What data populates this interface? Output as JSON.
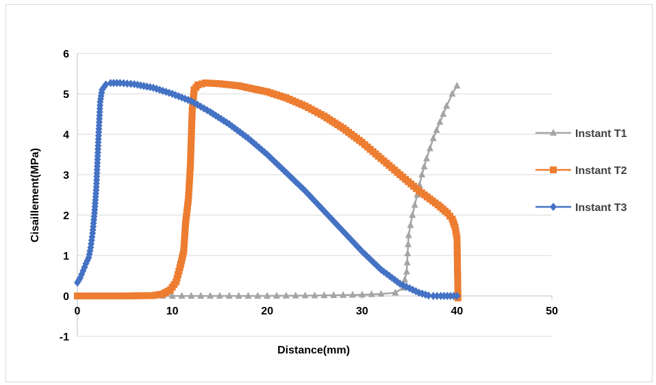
{
  "chart_data": {
    "type": "line",
    "title": "",
    "xlabel": "Distance(mm)",
    "ylabel": "Cisaillement(MPa)",
    "xlim": [
      0,
      50
    ],
    "ylim": [
      -1,
      6
    ],
    "x_ticks": [
      "0",
      "10",
      "20",
      "30",
      "40",
      "50"
    ],
    "y_ticks": [
      "-1",
      "0",
      "1",
      "2",
      "3",
      "4",
      "5",
      "6"
    ],
    "grid": "horizontal",
    "legend": "right",
    "series": [
      {
        "name": "Instant T1",
        "color": "#a5a5a5",
        "marker": "triangle",
        "points": [
          [
            0,
            0
          ],
          [
            5,
            0
          ],
          [
            10,
            0
          ],
          [
            15,
            0
          ],
          [
            20,
            0
          ],
          [
            25,
            0.01
          ],
          [
            28,
            0.02
          ],
          [
            30,
            0.03
          ],
          [
            32,
            0.05
          ],
          [
            33.5,
            0.08
          ],
          [
            34.3,
            0.2
          ],
          [
            34.7,
            0.6
          ],
          [
            34.9,
            1.5
          ],
          [
            35.3,
            2.0
          ],
          [
            35.8,
            2.5
          ],
          [
            36.3,
            3.0
          ],
          [
            36.8,
            3.4
          ],
          [
            37.5,
            3.9
          ],
          [
            38.2,
            4.3
          ],
          [
            38.9,
            4.7
          ],
          [
            39.5,
            5.0
          ],
          [
            40,
            5.2
          ]
        ]
      },
      {
        "name": "Instant T2",
        "color": "#ed7d31",
        "marker": "square",
        "points": [
          [
            0,
            0
          ],
          [
            5,
            0
          ],
          [
            8,
            0.01
          ],
          [
            9,
            0.05
          ],
          [
            9.8,
            0.15
          ],
          [
            10.4,
            0.35
          ],
          [
            10.8,
            0.7
          ],
          [
            11.2,
            1.1
          ],
          [
            11.4,
            1.8
          ],
          [
            11.7,
            2.4
          ],
          [
            11.9,
            3.2
          ],
          [
            12.1,
            4.6
          ],
          [
            12.3,
            5.1
          ],
          [
            12.7,
            5.22
          ],
          [
            13.5,
            5.27
          ],
          [
            15,
            5.25
          ],
          [
            17,
            5.2
          ],
          [
            20,
            5.05
          ],
          [
            22,
            4.9
          ],
          [
            24,
            4.7
          ],
          [
            26,
            4.45
          ],
          [
            28,
            4.15
          ],
          [
            30,
            3.8
          ],
          [
            32,
            3.4
          ],
          [
            34,
            3.0
          ],
          [
            36,
            2.6
          ],
          [
            38,
            2.25
          ],
          [
            39,
            2.05
          ],
          [
            39.5,
            1.9
          ],
          [
            39.8,
            1.7
          ],
          [
            40,
            1.43
          ],
          [
            40.1,
            0.0
          ],
          [
            40.1,
            -0.05
          ]
        ]
      },
      {
        "name": "Instant T3",
        "color": "#4472c4",
        "marker": "diamond",
        "points": [
          [
            0,
            0.33
          ],
          [
            0.3,
            0.45
          ],
          [
            0.6,
            0.62
          ],
          [
            0.9,
            0.8
          ],
          [
            1.2,
            0.95
          ],
          [
            1.4,
            1.2
          ],
          [
            1.6,
            1.55
          ],
          [
            1.8,
            2.05
          ],
          [
            2.0,
            2.7
          ],
          [
            2.2,
            3.8
          ],
          [
            2.4,
            4.8
          ],
          [
            2.6,
            5.1
          ],
          [
            3.0,
            5.23
          ],
          [
            3.5,
            5.27
          ],
          [
            4.5,
            5.27
          ],
          [
            6,
            5.24
          ],
          [
            8,
            5.15
          ],
          [
            10,
            5.0
          ],
          [
            12,
            4.82
          ],
          [
            14,
            4.55
          ],
          [
            16,
            4.25
          ],
          [
            18,
            3.9
          ],
          [
            20,
            3.5
          ],
          [
            22,
            3.05
          ],
          [
            24,
            2.6
          ],
          [
            26,
            2.1
          ],
          [
            28,
            1.6
          ],
          [
            30,
            1.1
          ],
          [
            32,
            0.65
          ],
          [
            34,
            0.3
          ],
          [
            36,
            0.08
          ],
          [
            37,
            0.01
          ],
          [
            37.5,
            0
          ],
          [
            38.3,
            0
          ],
          [
            40,
            0
          ]
        ]
      }
    ]
  }
}
